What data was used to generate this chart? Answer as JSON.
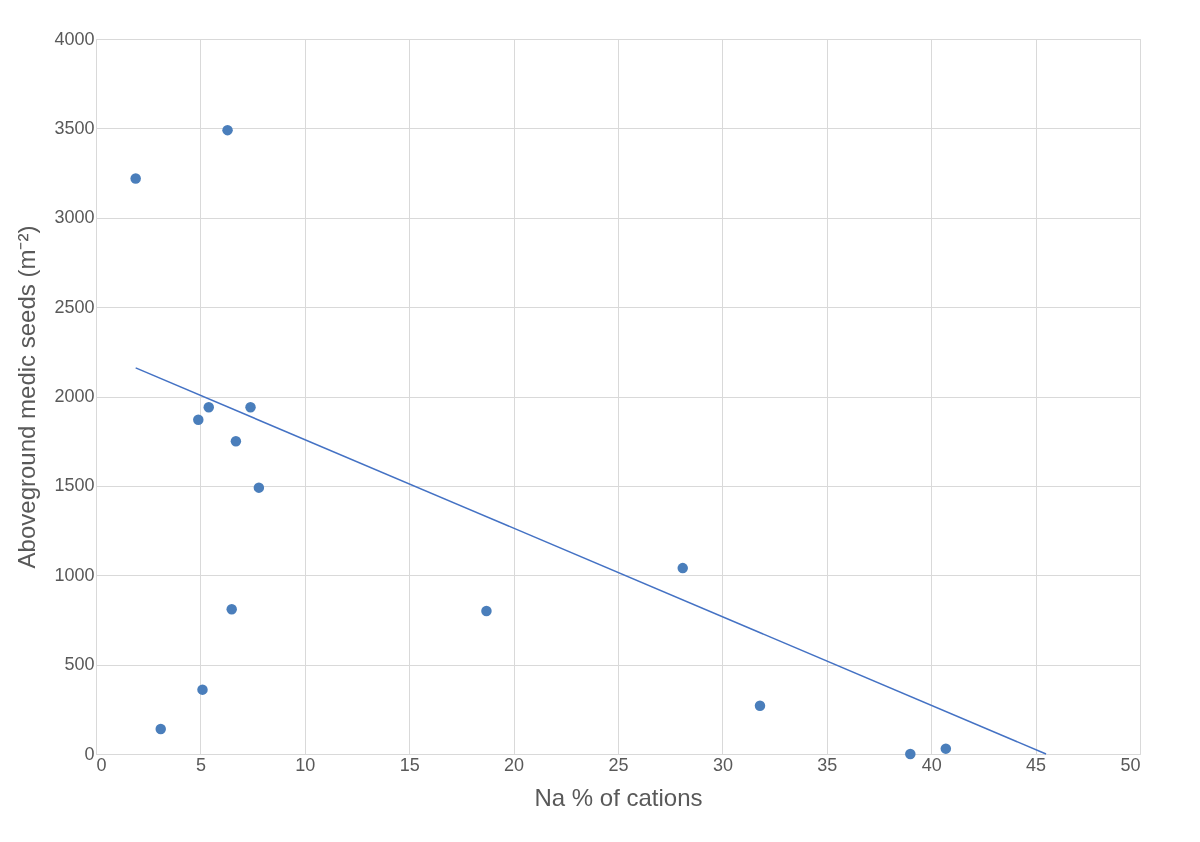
{
  "chart_data": {
    "type": "scatter",
    "xlabel": "Na % of cations",
    "ylabel": "Aboveground medic seeds (m⁻²)",
    "xlim": [
      0,
      50
    ],
    "xticks": [
      0,
      5,
      10,
      15,
      20,
      25,
      30,
      35,
      40,
      45,
      50
    ],
    "ylim": [
      0,
      4000
    ],
    "yticks": [
      0,
      500,
      1000,
      1500,
      2000,
      2500,
      3000,
      3500,
      4000
    ],
    "grid": true,
    "series": [
      {
        "color": "#4a7ebb",
        "marker": "circle",
        "x": [
          1.9,
          6.3,
          4.9,
          5.4,
          7.4,
          6.7,
          7.8,
          6.5,
          5.1,
          3.1,
          18.7,
          28.1,
          31.8,
          39.0,
          40.7
        ],
        "values": [
          3220,
          3490,
          1870,
          1940,
          1940,
          1750,
          1490,
          810,
          360,
          140,
          800,
          1040,
          270,
          0,
          30
        ]
      },
      {
        "type": "line",
        "color": "#4472c4",
        "x": [
          1.9,
          45.5
        ],
        "values": [
          2160,
          0
        ]
      }
    ]
  }
}
